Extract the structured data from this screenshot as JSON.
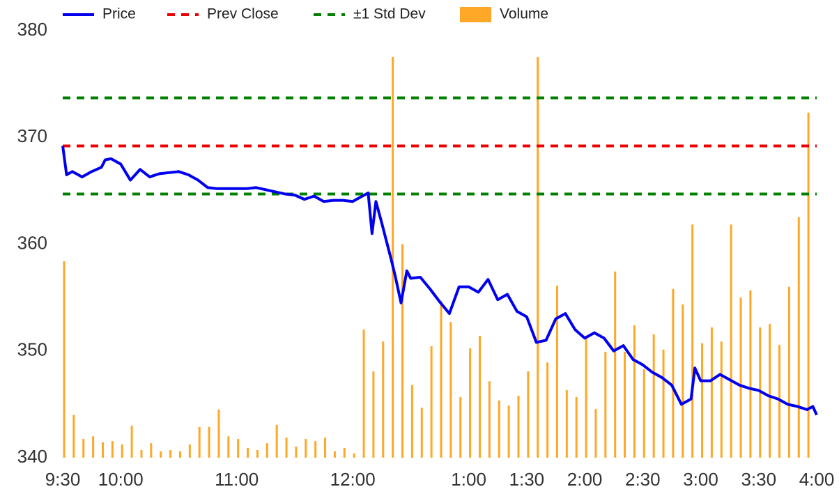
{
  "chart_data": {
    "type": "line",
    "xlim": [
      0,
      390
    ],
    "xticks": [
      {
        "value": 0,
        "label": "9:30"
      },
      {
        "value": 30,
        "label": "10:00"
      },
      {
        "value": 90,
        "label": "11:00"
      },
      {
        "value": 150,
        "label": "12:00"
      },
      {
        "value": 210,
        "label": "1:00"
      },
      {
        "value": 240,
        "label": "1:30"
      },
      {
        "value": 270,
        "label": "2:00"
      },
      {
        "value": 300,
        "label": "2:30"
      },
      {
        "value": 330,
        "label": "3:00"
      },
      {
        "value": 360,
        "label": "3:30"
      },
      {
        "value": 390,
        "label": "4:00"
      }
    ],
    "ylim": [
      340,
      380
    ],
    "yticks": [
      340,
      350,
      360,
      370,
      380
    ],
    "y2lim": [
      0,
      100
    ],
    "grid": false,
    "legend": "top",
    "series": [
      {
        "name": "Price",
        "type": "line",
        "color": "#0000ee",
        "x": [
          0,
          2,
          5,
          10,
          15,
          20,
          22,
          25,
          30,
          35,
          40,
          45,
          50,
          55,
          60,
          65,
          70,
          75,
          80,
          85,
          90,
          95,
          100,
          105,
          110,
          115,
          120,
          125,
          130,
          135,
          140,
          145,
          150,
          155,
          158,
          160,
          162,
          165,
          170,
          172,
          175,
          178,
          180,
          185,
          190,
          195,
          200,
          205,
          210,
          215,
          220,
          225,
          230,
          235,
          240,
          245,
          250,
          255,
          260,
          265,
          270,
          275,
          280,
          285,
          290,
          295,
          300,
          305,
          310,
          315,
          320,
          325,
          327,
          330,
          335,
          340,
          345,
          350,
          355,
          360,
          365,
          370,
          375,
          380,
          385,
          388,
          390
        ],
        "values": [
          369.2,
          366.5,
          366.8,
          366.3,
          366.8,
          367.2,
          367.9,
          368.0,
          367.5,
          366.0,
          367.0,
          366.3,
          366.6,
          366.7,
          366.8,
          366.5,
          366.0,
          365.3,
          365.2,
          365.2,
          365.2,
          365.2,
          365.3,
          365.1,
          364.9,
          364.7,
          364.6,
          364.2,
          364.5,
          364.0,
          364.1,
          364.1,
          364.0,
          364.5,
          364.8,
          361.0,
          364.0,
          362.0,
          358.5,
          357.0,
          354.5,
          357.5,
          356.8,
          356.9,
          355.8,
          354.6,
          353.5,
          356.0,
          356.0,
          355.5,
          356.7,
          354.8,
          355.3,
          353.7,
          353.2,
          350.8,
          351.0,
          353.0,
          353.5,
          352.0,
          351.2,
          351.7,
          351.2,
          350.0,
          350.5,
          349.2,
          348.7,
          348.0,
          347.5,
          346.8,
          345.0,
          345.5,
          348.4,
          347.2,
          347.2,
          347.8,
          347.3,
          346.8,
          346.5,
          346.3,
          345.8,
          345.5,
          345.0,
          344.8,
          344.5,
          344.8,
          344.0
        ]
      },
      {
        "name": "Prev Close",
        "type": "hline",
        "color": "#ee0000",
        "values": [
          369.2
        ]
      },
      {
        "name": "±1 Std Dev",
        "type": "hline",
        "color": "#008000",
        "values": [
          373.7,
          364.7
        ]
      },
      {
        "name": "Volume",
        "type": "bar",
        "axis": "y2",
        "color": "#ffa726",
        "x": [
          0,
          5,
          10,
          15,
          20,
          25,
          30,
          35,
          40,
          45,
          50,
          55,
          60,
          65,
          70,
          75,
          80,
          85,
          90,
          95,
          100,
          105,
          110,
          115,
          120,
          125,
          130,
          135,
          140,
          145,
          150,
          155,
          160,
          165,
          170,
          175,
          180,
          185,
          190,
          195,
          200,
          205,
          210,
          215,
          220,
          225,
          230,
          235,
          240,
          245,
          250,
          255,
          260,
          265,
          270,
          275,
          280,
          285,
          290,
          295,
          300,
          305,
          310,
          315,
          320,
          325,
          330,
          335,
          340,
          345,
          350,
          355,
          360,
          365,
          370,
          375,
          380,
          385
        ],
        "values": [
          46,
          10,
          4.4,
          5,
          3.6,
          3.9,
          3.1,
          7.5,
          1.8,
          3.4,
          1.5,
          1.8,
          1.5,
          3.1,
          7.2,
          7.2,
          11.3,
          5,
          4.4,
          2.3,
          1.8,
          3.4,
          7.7,
          4.7,
          2.6,
          4.4,
          3.9,
          4.7,
          1.5,
          2.3,
          1,
          30,
          20.2,
          27.2,
          93.8,
          50,
          17,
          11.7,
          26.1,
          36.7,
          31.8,
          14.2,
          25.6,
          28.5,
          17.9,
          13.4,
          12.2,
          14.5,
          20.2,
          93.8,
          22.3,
          40.3,
          15.8,
          14.2,
          28.5,
          11.4,
          24.8,
          43.6,
          24.8,
          31,
          20.7,
          28.9,
          25.3,
          39.5,
          35.9,
          54.6,
          26.8,
          30.5,
          27.2,
          54.6,
          37.5,
          39.2,
          30.5,
          31.3,
          26.4,
          40,
          56.3,
          80.8
        ]
      }
    ]
  }
}
